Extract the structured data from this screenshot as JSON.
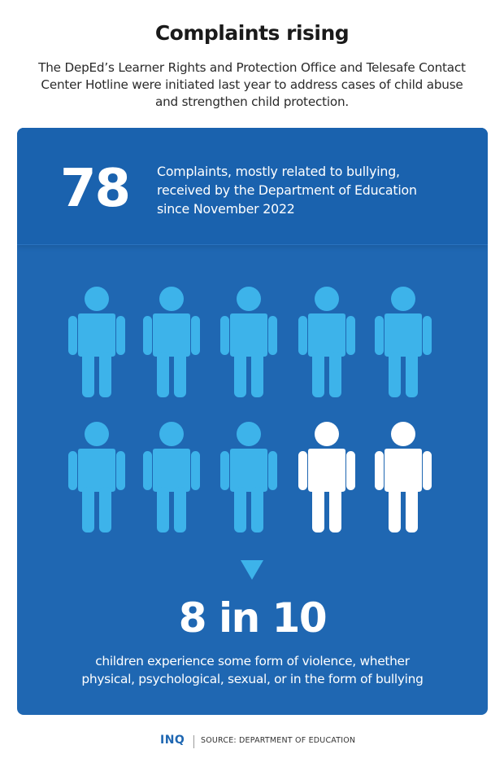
{
  "header": {
    "title": "Complaints rising",
    "intro": "The DepEd’s Learner Rights and Protection Office and Telesafe Contact Center Hotline were initiated last year to address cases of child abuse and strengthen child protection."
  },
  "panel": {
    "big_number": "78",
    "big_number_desc_lines": [
      "Complaints, mostly related to bullying,",
      "received by the Department of Education",
      "since November 2022"
    ],
    "pictogram": {
      "total": 10,
      "highlighted": 8,
      "highlight_color": "#3db3ea",
      "other_color": "#ffffff",
      "icon": "child-figure-icon"
    },
    "stat": "8 in 10",
    "stat_desc_lines": [
      "children experience some form of violence, whether",
      "physical, psychological, sexual, or in the form of bullying"
    ],
    "background_color": "#1f67b2"
  },
  "footer": {
    "logo": "INQ",
    "source": "SOURCE: DEPARTMENT OF EDUCATION"
  }
}
